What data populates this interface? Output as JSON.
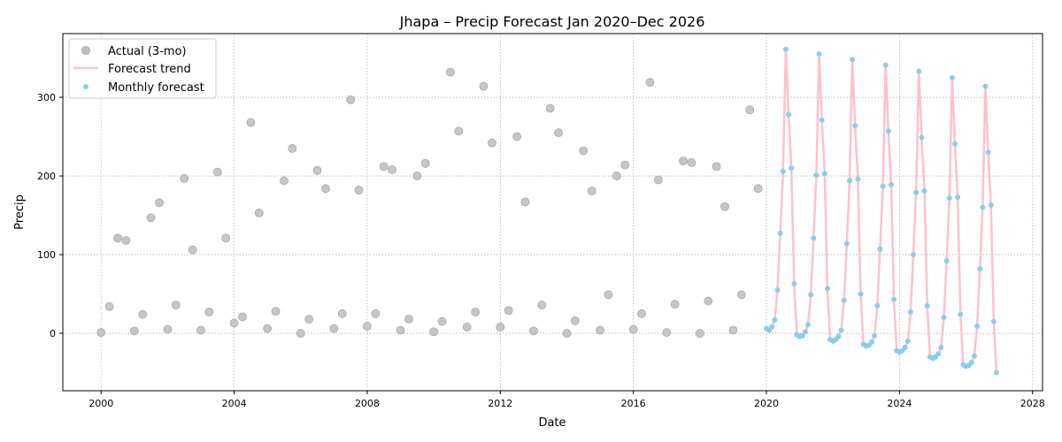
{
  "chart_data": {
    "type": "scatter",
    "title": "Jhapa – Precip Forecast Jan 2020–Dec 2026",
    "xlabel": "Date",
    "ylabel": "Precip",
    "xlim": [
      1998.85,
      2028.3
    ],
    "ylim": [
      -73,
      381
    ],
    "x_ticks": [
      2000,
      2004,
      2008,
      2012,
      2016,
      2020,
      2024,
      2028
    ],
    "x_tick_labels": [
      "2000",
      "2004",
      "2008",
      "2012",
      "2016",
      "2020",
      "2024",
      "2028"
    ],
    "y_ticks": [
      0,
      100,
      200,
      300
    ],
    "y_tick_labels": [
      "0",
      "100",
      "200",
      "300"
    ],
    "grid": true,
    "legend_position": "top-left",
    "series": [
      {
        "name": "Actual (3-mo)",
        "style": "scatter",
        "color": "#c0c0c0",
        "x": [
          2000.0,
          2000.25,
          2000.5,
          2000.75,
          2001.0,
          2001.25,
          2001.5,
          2001.75,
          2002.0,
          2002.25,
          2002.5,
          2002.75,
          2003.0,
          2003.25,
          2003.5,
          2003.75,
          2004.0,
          2004.25,
          2004.5,
          2004.75,
          2005.0,
          2005.25,
          2005.5,
          2005.75,
          2006.0,
          2006.25,
          2006.5,
          2006.75,
          2007.0,
          2007.25,
          2007.5,
          2007.75,
          2008.0,
          2008.25,
          2008.5,
          2008.75,
          2009.0,
          2009.25,
          2009.5,
          2009.75,
          2010.0,
          2010.25,
          2010.5,
          2010.75,
          2011.0,
          2011.25,
          2011.5,
          2011.75,
          2012.0,
          2012.25,
          2012.5,
          2012.75,
          2013.0,
          2013.25,
          2013.5,
          2013.75,
          2014.0,
          2014.25,
          2014.5,
          2014.75,
          2015.0,
          2015.25,
          2015.5,
          2015.75,
          2016.0,
          2016.25,
          2016.5,
          2016.75,
          2017.0,
          2017.25,
          2017.5,
          2017.75,
          2018.0,
          2018.25,
          2018.5,
          2018.75,
          2019.0,
          2019.25,
          2019.5,
          2019.75
        ],
        "y": [
          1,
          34,
          121,
          118,
          3,
          24,
          147,
          166,
          5,
          36,
          197,
          106,
          4,
          27,
          205,
          121,
          13,
          21,
          268,
          153,
          6,
          28,
          194,
          235,
          0,
          18,
          207,
          184,
          6,
          25,
          297,
          182,
          9,
          25,
          212,
          208,
          4,
          18,
          200,
          216,
          2,
          15,
          332,
          257,
          8,
          27,
          314,
          242,
          8,
          29,
          250,
          167,
          3,
          36,
          286,
          255,
          0,
          16,
          232,
          181,
          4,
          49,
          200,
          214,
          5,
          25,
          319,
          195,
          1,
          37,
          219,
          217,
          0,
          41,
          212,
          161,
          4,
          49,
          284,
          184
        ]
      },
      {
        "name": "Forecast trend",
        "style": "line",
        "color": "#ffc0cb"
      },
      {
        "name": "Monthly forecast",
        "style": "scatter",
        "color": "#87ceeb",
        "x": [
          2020.0,
          2020.0833,
          2020.1667,
          2020.25,
          2020.3333,
          2020.4167,
          2020.5,
          2020.5833,
          2020.6667,
          2020.75,
          2020.8333,
          2020.9167,
          2021.0,
          2021.0833,
          2021.1667,
          2021.25,
          2021.3333,
          2021.4167,
          2021.5,
          2021.5833,
          2021.6667,
          2021.75,
          2021.8333,
          2021.9167,
          2022.0,
          2022.0833,
          2022.1667,
          2022.25,
          2022.3333,
          2022.4167,
          2022.5,
          2022.5833,
          2022.6667,
          2022.75,
          2022.8333,
          2022.9167,
          2023.0,
          2023.0833,
          2023.1667,
          2023.25,
          2023.3333,
          2023.4167,
          2023.5,
          2023.5833,
          2023.6667,
          2023.75,
          2023.8333,
          2023.9167,
          2024.0,
          2024.0833,
          2024.1667,
          2024.25,
          2024.3333,
          2024.4167,
          2024.5,
          2024.5833,
          2024.6667,
          2024.75,
          2024.8333,
          2024.9167,
          2025.0,
          2025.0833,
          2025.1667,
          2025.25,
          2025.3333,
          2025.4167,
          2025.5,
          2025.5833,
          2025.6667,
          2025.75,
          2025.8333,
          2025.9167,
          2026.0,
          2026.0833,
          2026.1667,
          2026.25,
          2026.3333,
          2026.4167,
          2026.5,
          2026.5833,
          2026.6667,
          2026.75,
          2026.8333,
          2026.9167
        ],
        "y": [
          6,
          4,
          8,
          17,
          55,
          127,
          206,
          361,
          278,
          210,
          63,
          -2,
          -4,
          -3,
          2,
          11,
          49,
          121,
          201,
          355,
          271,
          203,
          57,
          -8,
          -10,
          -8,
          -4,
          4,
          42,
          114,
          194,
          348,
          264,
          196,
          50,
          -14,
          -16,
          -15,
          -11,
          -3,
          35,
          107,
          187,
          341,
          257,
          189,
          43,
          -22,
          -24,
          -22,
          -18,
          -10,
          27,
          100,
          179,
          333,
          249,
          181,
          35,
          -30,
          -32,
          -30,
          -26,
          -18,
          20,
          92,
          172,
          325,
          241,
          173,
          24,
          -40,
          -42,
          -41,
          -37,
          -29,
          9,
          82,
          160,
          314,
          230,
          163,
          15,
          -50
        ]
      }
    ]
  }
}
